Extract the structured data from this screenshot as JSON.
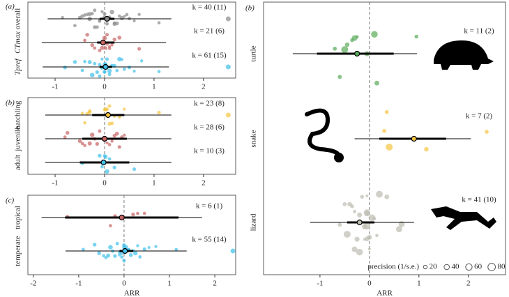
{
  "chart_data": [
    {
      "type": "orchard",
      "panel_label": "(a)",
      "xlim": [
        -1.55,
        2.65
      ],
      "xticks": [
        -1,
        0,
        1,
        2
      ],
      "reference_x": 0,
      "categories": [
        "overall",
        "CTmax",
        "Tpref"
      ],
      "series": [
        {
          "name": "overall",
          "color": "#8a8a8a",
          "k_label": "k = 40 (11)",
          "estimate": 0.05,
          "ci": [
            -0.1,
            0.2
          ],
          "pi": [
            -1.15,
            1.35
          ],
          "points": [
            -0.85,
            -0.6,
            -0.5,
            -0.45,
            -0.4,
            -0.35,
            -0.3,
            -0.3,
            -0.25,
            -0.2,
            -0.2,
            -0.15,
            -0.1,
            -0.1,
            -0.05,
            0,
            0,
            0.05,
            0.1,
            0.1,
            0.15,
            0.2,
            0.2,
            0.25,
            0.3,
            0.35,
            0.4,
            0.45,
            0.5,
            0.6,
            0.7,
            1.1,
            2.5
          ]
        },
        {
          "name": "CTmax",
          "color": "#c86464",
          "k_label": "k = 21 (6)",
          "estimate": -0.03,
          "ci": [
            -0.15,
            0.2
          ],
          "pi": [
            -1.27,
            1.24
          ],
          "points": [
            -0.4,
            -0.35,
            -0.25,
            -0.2,
            -0.1,
            -0.05,
            0,
            0,
            0.02,
            0.05,
            0.05,
            0.1,
            0.1,
            0.15,
            0.2,
            0.3,
            0.7
          ]
        },
        {
          "name": "Tpref",
          "color": "#3fc0ea",
          "k_label": "k = 61 (15)",
          "estimate": 0.02,
          "ci": [
            -0.1,
            0.15
          ],
          "pi": [
            -1.25,
            1.3
          ],
          "points": [
            -0.8,
            -0.6,
            -0.45,
            -0.4,
            -0.3,
            -0.25,
            -0.2,
            -0.15,
            -0.1,
            -0.1,
            -0.05,
            -0.05,
            0,
            0,
            0,
            0.02,
            0.05,
            0.05,
            0.1,
            0.1,
            0.15,
            0.2,
            0.25,
            0.3,
            0.35,
            0.4,
            0.5,
            0.6,
            0.75,
            1.1,
            2.5
          ]
        }
      ]
    },
    {
      "type": "orchard",
      "panel_label": "(b)",
      "xlim": [
        -1.55,
        2.65
      ],
      "xticks": [
        -1,
        0,
        1,
        2
      ],
      "reference_x": 0,
      "categories": [
        "hatchling",
        "juvenile",
        "adult"
      ],
      "series": [
        {
          "name": "hatchling",
          "color": "#f5c542",
          "k_label": "k = 23 (8)",
          "estimate": 0.07,
          "ci": [
            -0.25,
            0.4
          ],
          "pi": [
            -1.2,
            1.35
          ],
          "points": [
            -0.45,
            -0.4,
            -0.35,
            -0.3,
            -0.3,
            0,
            0.02,
            0.05,
            0.05,
            0.1,
            0.1,
            0.15,
            0.2,
            0.3,
            0.4,
            1.1,
            2.5
          ]
        },
        {
          "name": "juvenile",
          "color": "#c86464",
          "k_label": "k = 28 (6)",
          "estimate": 0,
          "ci": [
            -0.45,
            0.45
          ],
          "pi": [
            -1.2,
            1.35
          ],
          "points": [
            -0.8,
            -0.75,
            -0.5,
            -0.45,
            -0.4,
            -0.3,
            -0.25,
            -0.2,
            -0.15,
            -0.1,
            0,
            0.05,
            0.1,
            0.15,
            0.2,
            0.25,
            0.3,
            0.35,
            0.4
          ]
        },
        {
          "name": "adult",
          "color": "#3fc0ea",
          "k_label": "k = 10 (3)",
          "estimate": -0.02,
          "ci": [
            -0.5,
            0.5
          ],
          "pi": [
            -1.2,
            1.35
          ],
          "points": [
            -0.45,
            -0.1,
            -0.05,
            0,
            0.02,
            0.05,
            0.1,
            0.2,
            0.6
          ]
        }
      ]
    },
    {
      "type": "orchard",
      "panel_label": "(c)",
      "xlabel": "ARR",
      "xlim": [
        -2.12,
        2.46
      ],
      "xticks": [
        -2,
        -1,
        0,
        1,
        2
      ],
      "reference_x": 0,
      "categories": [
        "tropical",
        "temperate"
      ],
      "series": [
        {
          "name": "tropical",
          "color": "#c86464",
          "k_label": "k = 6 (1)",
          "estimate": -0.05,
          "ci": [
            -1.3,
            1.2
          ],
          "pi": [
            -1.82,
            1.72
          ],
          "points": [
            -1.25,
            -0.3,
            -0.2,
            0.2,
            0.3,
            0.45
          ]
        },
        {
          "name": "temperate",
          "color": "#3fc0ea",
          "k_label": "k = 55 (14)",
          "estimate": 0.02,
          "ci": [
            -0.1,
            0.2
          ],
          "pi": [
            -1.29,
            1.38
          ],
          "points": [
            -0.9,
            -0.65,
            -0.55,
            -0.45,
            -0.4,
            -0.35,
            -0.3,
            -0.25,
            -0.2,
            -0.15,
            -0.1,
            -0.1,
            -0.05,
            -0.05,
            0,
            0,
            0,
            0.02,
            0.05,
            0.05,
            0.1,
            0.1,
            0.15,
            0.2,
            0.25,
            0.3,
            0.35,
            0.45,
            0.55,
            0.7,
            1.15,
            2.4
          ]
        }
      ]
    },
    {
      "type": "orchard",
      "panel_label": "(b)",
      "xlabel": "ARR",
      "xlim": [
        -2.14,
        2.75
      ],
      "xticks": [
        -1,
        0,
        1,
        2
      ],
      "reference_x": 0,
      "legend_title": "precision (1/s.e.)",
      "legend_sizes": [
        20,
        40,
        60,
        80
      ],
      "categories": [
        "turtle",
        "snake",
        "lizard"
      ],
      "series": [
        {
          "name": "turtle",
          "color": "#5aab5a",
          "k_label": "k = 11 (2)",
          "estimate": -0.25,
          "ci": [
            -1.06,
            0.49
          ],
          "pi": [
            -1.55,
            0.96
          ],
          "points": [
            -0.7,
            -0.6,
            -0.5,
            -0.45,
            -0.35,
            -0.3,
            -0.25,
            -0.05,
            0.1,
            0.15,
            0.95
          ]
        },
        {
          "name": "snake",
          "color": "#f5c542",
          "k_label": "k = 7 (2)",
          "estimate": 0.9,
          "ci": [
            0.2,
            1.55
          ],
          "pi": [
            -0.3,
            2.05
          ],
          "points": [
            0.3,
            0.35,
            0.4,
            1.15,
            2.37
          ]
        },
        {
          "name": "lizard",
          "color": "#bdbcb0",
          "k_label": "k = 41 (10)",
          "estimate": -0.2,
          "ci": [
            -0.45,
            0.1
          ],
          "pi": [
            -1.2,
            0.9
          ],
          "points": [
            -0.6,
            -0.5,
            -0.45,
            -0.4,
            -0.35,
            -0.3,
            -0.3,
            -0.25,
            -0.2,
            -0.2,
            -0.15,
            -0.1,
            -0.1,
            -0.05,
            -0.05,
            -0.05,
            -0.05,
            -0.05,
            0,
            0,
            0.05,
            0.1,
            0.15,
            0.2,
            0.35,
            0.6,
            0.65
          ]
        }
      ]
    }
  ]
}
